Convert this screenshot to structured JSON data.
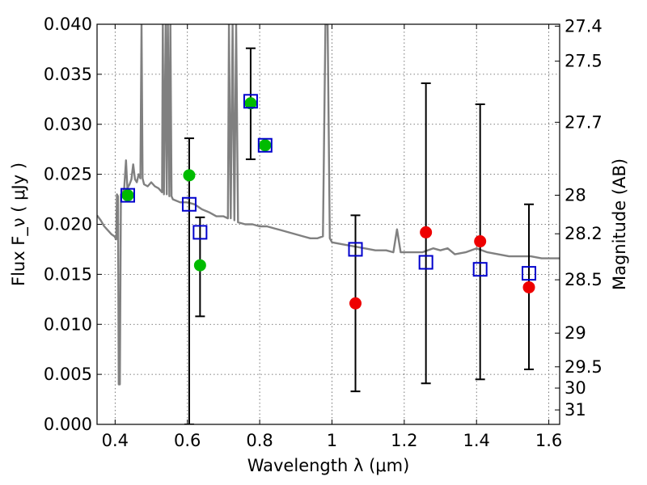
{
  "chart_data": {
    "type": "scatter",
    "xlabel": "Wavelength  λ (μm)",
    "ylabel": "Flux  F_ν  ( μJy )",
    "ylabel_right": "Magnitude (AB)",
    "xlim": [
      0.35,
      1.63
    ],
    "ylim": [
      0.0,
      0.04
    ],
    "grid": true,
    "x_ticks": [
      0.4,
      0.6,
      0.8,
      1.0,
      1.2,
      1.4,
      1.6
    ],
    "x_tick_labels": [
      "0.4",
      "0.6",
      "0.8",
      "1",
      "1.2",
      "1.4",
      "1.6"
    ],
    "y_ticks": [
      0.0,
      0.005,
      0.01,
      0.015,
      0.02,
      0.025,
      0.03,
      0.035,
      0.04
    ],
    "y_tick_labels": [
      "0.000",
      "0.005",
      "0.010",
      "0.015",
      "0.020",
      "0.025",
      "0.030",
      "0.035",
      "0.040"
    ],
    "right_ticks": [
      {
        "mag": 27.4,
        "label": "27.4"
      },
      {
        "mag": 27.5,
        "label": "27.5"
      },
      {
        "mag": 27.7,
        "label": "27.7"
      },
      {
        "mag": 28.0,
        "label": "28"
      },
      {
        "mag": 28.2,
        "label": "28.2"
      },
      {
        "mag": 28.5,
        "label": "28.5"
      },
      {
        "mag": 29.0,
        "label": "29"
      },
      {
        "mag": 29.5,
        "label": "29.5"
      },
      {
        "mag": 30.0,
        "label": "30"
      },
      {
        "mag": 31.0,
        "label": "31"
      }
    ],
    "series": [
      {
        "kind": "model_spectrum",
        "color": "#808080",
        "points": [
          [
            0.35,
            0.0209
          ],
          [
            0.36,
            0.0204
          ],
          [
            0.37,
            0.0198
          ],
          [
            0.38,
            0.0194
          ],
          [
            0.39,
            0.019
          ],
          [
            0.398,
            0.0188
          ],
          [
            0.403,
            0.0185
          ],
          [
            0.405,
            0.023
          ],
          [
            0.408,
            0.0228
          ],
          [
            0.41,
            0.004
          ],
          [
            0.413,
            0.004
          ],
          [
            0.416,
            0.023
          ],
          [
            0.42,
            0.0232
          ],
          [
            0.425,
            0.0235
          ],
          [
            0.43,
            0.0264
          ],
          [
            0.434,
            0.0236
          ],
          [
            0.44,
            0.024
          ],
          [
            0.445,
            0.0245
          ],
          [
            0.45,
            0.026
          ],
          [
            0.455,
            0.0245
          ],
          [
            0.46,
            0.0242
          ],
          [
            0.465,
            0.025
          ],
          [
            0.47,
            0.0246
          ],
          [
            0.473,
            0.04
          ],
          [
            0.476,
            0.0246
          ],
          [
            0.48,
            0.024
          ],
          [
            0.49,
            0.0238
          ],
          [
            0.5,
            0.0242
          ],
          [
            0.51,
            0.0238
          ],
          [
            0.52,
            0.0236
          ],
          [
            0.53,
            0.0232
          ],
          [
            0.532,
            0.04
          ],
          [
            0.535,
            0.023
          ],
          [
            0.54,
            0.04
          ],
          [
            0.543,
            0.023
          ],
          [
            0.546,
            0.04
          ],
          [
            0.55,
            0.0228
          ],
          [
            0.553,
            0.04
          ],
          [
            0.556,
            0.0228
          ],
          [
            0.56,
            0.0225
          ],
          [
            0.58,
            0.0222
          ],
          [
            0.6,
            0.0222
          ],
          [
            0.62,
            0.022
          ],
          [
            0.64,
            0.0215
          ],
          [
            0.66,
            0.0212
          ],
          [
            0.68,
            0.0208
          ],
          [
            0.7,
            0.0208
          ],
          [
            0.712,
            0.0206
          ],
          [
            0.715,
            0.04
          ],
          [
            0.72,
            0.0206
          ],
          [
            0.725,
            0.04
          ],
          [
            0.73,
            0.0204
          ],
          [
            0.735,
            0.04
          ],
          [
            0.74,
            0.0202
          ],
          [
            0.76,
            0.02
          ],
          [
            0.78,
            0.02
          ],
          [
            0.8,
            0.0198
          ],
          [
            0.82,
            0.0198
          ],
          [
            0.84,
            0.0196
          ],
          [
            0.86,
            0.0194
          ],
          [
            0.88,
            0.0192
          ],
          [
            0.9,
            0.019
          ],
          [
            0.92,
            0.0188
          ],
          [
            0.94,
            0.0186
          ],
          [
            0.96,
            0.0186
          ],
          [
            0.975,
            0.0188
          ],
          [
            0.982,
            0.04
          ],
          [
            0.988,
            0.04
          ],
          [
            0.994,
            0.0186
          ],
          [
            1.0,
            0.0182
          ],
          [
            1.03,
            0.018
          ],
          [
            1.06,
            0.0178
          ],
          [
            1.09,
            0.0176
          ],
          [
            1.12,
            0.0174
          ],
          [
            1.15,
            0.0174
          ],
          [
            1.17,
            0.0172
          ],
          [
            1.18,
            0.0195
          ],
          [
            1.19,
            0.0172
          ],
          [
            1.22,
            0.0172
          ],
          [
            1.25,
            0.0172
          ],
          [
            1.28,
            0.0176
          ],
          [
            1.3,
            0.0174
          ],
          [
            1.32,
            0.0176
          ],
          [
            1.34,
            0.017
          ],
          [
            1.37,
            0.0172
          ],
          [
            1.4,
            0.0176
          ],
          [
            1.43,
            0.0172
          ],
          [
            1.46,
            0.017
          ],
          [
            1.49,
            0.0168
          ],
          [
            1.52,
            0.0168
          ],
          [
            1.55,
            0.0168
          ],
          [
            1.58,
            0.0166
          ],
          [
            1.6,
            0.0166
          ],
          [
            1.63,
            0.0166
          ]
        ]
      },
      {
        "kind": "model_photometry",
        "marker": "open-square",
        "color": "#0000cc",
        "points": [
          [
            0.435,
            0.0229
          ],
          [
            0.605,
            0.022
          ],
          [
            0.635,
            0.0192
          ],
          [
            0.775,
            0.0323
          ],
          [
            0.815,
            0.0279
          ],
          [
            1.065,
            0.0175
          ],
          [
            1.26,
            0.0162
          ],
          [
            1.41,
            0.0155
          ],
          [
            1.545,
            0.0151
          ]
        ]
      },
      {
        "kind": "observed_optical",
        "marker": "filled-circle",
        "color": "#00bb00",
        "points": [
          [
            0.435,
            0.0229
          ],
          [
            0.605,
            0.0249
          ],
          [
            0.635,
            0.0159
          ],
          [
            0.775,
            0.0321
          ],
          [
            0.815,
            0.0279
          ]
        ]
      },
      {
        "kind": "observed_nir",
        "marker": "filled-circle",
        "color": "#ee0000",
        "points": [
          [
            1.065,
            0.0121
          ],
          [
            1.26,
            0.0192
          ],
          [
            1.41,
            0.0183
          ],
          [
            1.545,
            0.0137
          ]
        ]
      },
      {
        "kind": "error_bars",
        "color": "#000000",
        "bars": [
          {
            "x": 0.605,
            "low": 0.0,
            "high": 0.0286
          },
          {
            "x": 0.635,
            "low": 0.0108,
            "high": 0.0207
          },
          {
            "x": 0.775,
            "low": 0.0265,
            "high": 0.0376
          },
          {
            "x": 1.065,
            "low": 0.0033,
            "high": 0.0209
          },
          {
            "x": 1.26,
            "low": 0.0041,
            "high": 0.0341
          },
          {
            "x": 1.41,
            "low": 0.0045,
            "high": 0.032
          },
          {
            "x": 1.545,
            "low": 0.0055,
            "high": 0.022
          }
        ]
      }
    ]
  }
}
